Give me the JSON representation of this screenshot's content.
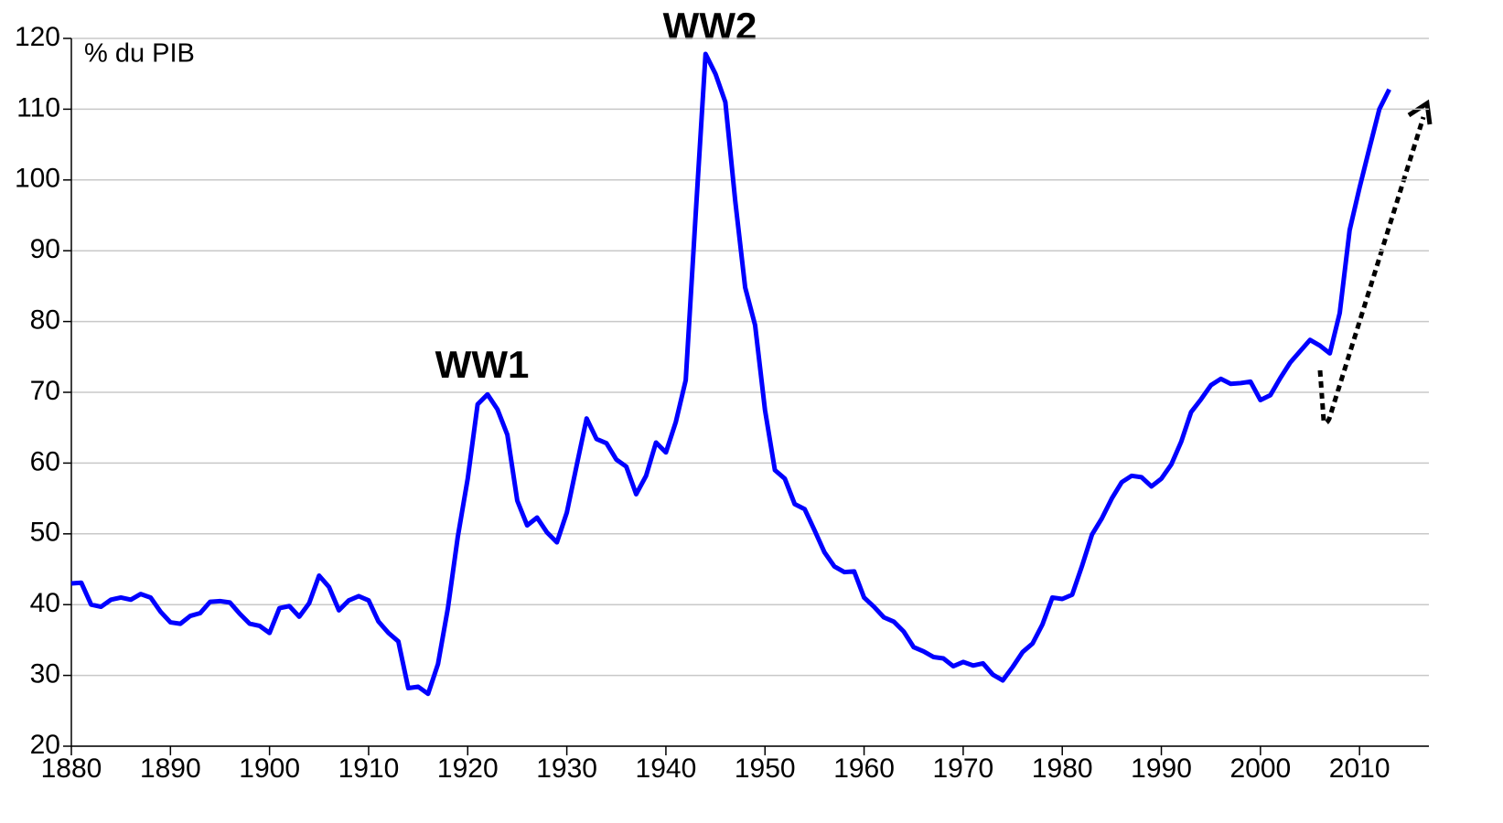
{
  "chart_data": {
    "type": "line",
    "unit_label": "% du PIB",
    "annotations": [
      "WW1",
      "WW2"
    ],
    "color": "#0000ff",
    "grid": true,
    "xlim": [
      1880,
      2017
    ],
    "xticks": [
      1880,
      1890,
      1900,
      1910,
      1920,
      1930,
      1940,
      1950,
      1960,
      1970,
      1980,
      1990,
      2000,
      2010
    ],
    "ylim": [
      20,
      120
    ],
    "yticks": [
      20,
      30,
      40,
      50,
      60,
      70,
      80,
      90,
      100,
      110,
      120
    ],
    "x": [
      1880,
      1881,
      1882,
      1883,
      1884,
      1885,
      1886,
      1887,
      1888,
      1889,
      1890,
      1891,
      1892,
      1893,
      1894,
      1895,
      1896,
      1897,
      1898,
      1899,
      1900,
      1901,
      1902,
      1903,
      1904,
      1905,
      1906,
      1907,
      1908,
      1909,
      1910,
      1911,
      1912,
      1913,
      1914,
      1915,
      1916,
      1917,
      1918,
      1919,
      1920,
      1921,
      1922,
      1923,
      1924,
      1925,
      1926,
      1927,
      1928,
      1929,
      1930,
      1931,
      1932,
      1933,
      1934,
      1935,
      1936,
      1937,
      1938,
      1939,
      1940,
      1941,
      1942,
      1943,
      1944,
      1945,
      1946,
      1947,
      1948,
      1949,
      1950,
      1951,
      1952,
      1953,
      1954,
      1955,
      1956,
      1957,
      1958,
      1959,
      1960,
      1961,
      1962,
      1963,
      1964,
      1965,
      1966,
      1967,
      1968,
      1969,
      1970,
      1971,
      1972,
      1973,
      1974,
      1975,
      1976,
      1977,
      1978,
      1979,
      1980,
      1981,
      1982,
      1983,
      1984,
      1985,
      1986,
      1987,
      1988,
      1989,
      1990,
      1991,
      1992,
      1993,
      1994,
      1995,
      1996,
      1997,
      1998,
      1999,
      2000,
      2001,
      2002,
      2003,
      2004,
      2005,
      2006,
      2007,
      2008,
      2009,
      2010,
      2011,
      2012,
      2013
    ],
    "values": [
      43,
      43.1,
      40,
      39.7,
      40.7,
      41,
      40.7,
      41.5,
      41,
      39,
      37.5,
      37.3,
      38.4,
      38.8,
      40.4,
      40.5,
      40.3,
      38.7,
      37.3,
      37,
      36,
      39.5,
      39.8,
      38.3,
      40.2,
      44.1,
      42.5,
      39.2,
      40.6,
      41.2,
      40.6,
      37.6,
      36,
      34.8,
      28.2,
      28.4,
      27.4,
      31.6,
      39.5,
      49.6,
      57.8,
      68.3,
      69.7,
      67.6,
      64,
      54.7,
      51.2,
      52.3,
      50.2,
      48.8,
      53,
      59.7,
      66.3,
      63.4,
      62.8,
      60.5,
      59.5,
      55.6,
      58.2,
      62.9,
      61.5,
      65.8,
      71.7,
      95,
      117.8,
      115,
      111,
      97,
      84.8,
      79.5,
      67.5,
      59,
      57.8,
      54.2,
      53.5,
      50.5,
      47.4,
      45.4,
      44.6,
      44.7,
      41,
      39.7,
      38.2,
      37.6,
      36.2,
      34,
      33.4,
      32.6,
      32.4,
      31.3,
      31.9,
      31.4,
      31.7,
      30.1,
      29.3,
      31.2,
      33.3,
      34.5,
      37.2,
      41,
      40.8,
      41.4,
      45.5,
      49.9,
      52.2,
      55,
      57.3,
      58.2,
      58,
      56.7,
      57.8,
      59.8,
      63,
      67.2,
      69,
      71,
      71.9,
      71.2,
      71.3,
      71.5,
      68.9,
      69.6,
      72,
      74.2,
      75.8,
      77.4,
      76.6,
      75.5,
      81.2,
      92.9,
      98.9,
      104.5,
      110,
      112.8
    ]
  }
}
